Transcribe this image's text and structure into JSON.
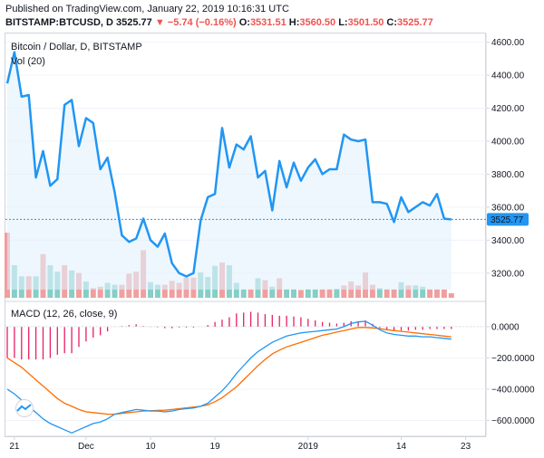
{
  "header": {
    "published": "Published on TradingView.com, January 22, 2019 10:16:31 UTC",
    "symbol": "BITSTAMP:BTCUSD, D",
    "last": "3525.77",
    "change": "▼ −5.74 (−0.16%)",
    "o_label": "O:",
    "o_val": "3531.51",
    "h_label": "H:",
    "h_val": "3560.50",
    "l_label": "L:",
    "l_val": "3501.50",
    "c_label": "C:",
    "c_val": "3525.77"
  },
  "price_pane": {
    "title": "Bitcoin / Dollar, D, BITSTAMP",
    "vol_label": "Vol (20)",
    "last_price_badge": "3525.77"
  },
  "macd_pane": {
    "title": "MACD (12, 26, close, 9)"
  },
  "colors": {
    "price_line": "#2196f3",
    "price_fill": "#e3f2fd",
    "vol_up": "#80cbc4",
    "vol_down": "#ef9a9a",
    "macd_line": "#2196f3",
    "signal_line": "#ff6d00",
    "hist": "#e91e63",
    "badge": "#2196f3",
    "text_down": "#ef5350"
  },
  "chart_data": [
    {
      "type": "line",
      "name": "price",
      "title": "Bitcoin / Dollar, D, BITSTAMP",
      "ylim": [
        3100,
        4620
      ],
      "yticks": [
        3200,
        3400,
        3600,
        3800,
        4000,
        4200,
        4400,
        4600
      ],
      "ytick_labels": [
        "3200.00",
        "3400.00",
        "3600.00",
        "3800.00",
        "4000.00",
        "4200.00",
        "4400.00",
        "4600.00"
      ],
      "x": [
        "2018-11-20",
        "2018-11-21",
        "2018-11-22",
        "2018-11-23",
        "2018-11-24",
        "2018-11-25",
        "2018-11-26",
        "2018-11-27",
        "2018-11-28",
        "2018-11-29",
        "2018-11-30",
        "2018-12-01",
        "2018-12-02",
        "2018-12-03",
        "2018-12-04",
        "2018-12-05",
        "2018-12-06",
        "2018-12-07",
        "2018-12-08",
        "2018-12-09",
        "2018-12-10",
        "2018-12-11",
        "2018-12-12",
        "2018-12-13",
        "2018-12-14",
        "2018-12-15",
        "2018-12-16",
        "2018-12-17",
        "2018-12-18",
        "2018-12-19",
        "2018-12-20",
        "2018-12-21",
        "2018-12-22",
        "2018-12-23",
        "2018-12-24",
        "2018-12-25",
        "2018-12-26",
        "2018-12-27",
        "2018-12-28",
        "2018-12-29",
        "2018-12-30",
        "2018-12-31",
        "2019-01-01",
        "2019-01-02",
        "2019-01-03",
        "2019-01-04",
        "2019-01-05",
        "2019-01-06",
        "2019-01-07",
        "2019-01-08",
        "2019-01-09",
        "2019-01-10",
        "2019-01-11",
        "2019-01-12",
        "2019-01-13",
        "2019-01-14",
        "2019-01-15",
        "2019-01-16",
        "2019-01-17",
        "2019-01-18",
        "2019-01-19",
        "2019-01-20",
        "2019-01-21"
      ],
      "close": [
        4350,
        4540,
        4270,
        4280,
        3780,
        3940,
        3730,
        3770,
        4220,
        4250,
        3970,
        4140,
        4110,
        3830,
        3900,
        3690,
        3430,
        3390,
        3410,
        3530,
        3400,
        3360,
        3440,
        3260,
        3200,
        3180,
        3200,
        3520,
        3660,
        3680,
        4080,
        3840,
        3980,
        3950,
        4030,
        3780,
        3820,
        3580,
        3880,
        3720,
        3870,
        3760,
        3840,
        3890,
        3800,
        3830,
        3830,
        4040,
        4010,
        4000,
        4010,
        3630,
        3630,
        3620,
        3510,
        3660,
        3570,
        3600,
        3630,
        3610,
        3680,
        3530,
        3525.77
      ],
      "volume_ratio": [
        1.0,
        0.5,
        0.33,
        0.33,
        0.33,
        0.67,
        0.5,
        0.4,
        0.5,
        0.42,
        0.38,
        0.25,
        0.15,
        0.17,
        0.23,
        0.2,
        0.2,
        0.37,
        0.4,
        0.73,
        0.24,
        0.2,
        0.2,
        0.26,
        0.23,
        0.31,
        0.31,
        0.39,
        0.32,
        0.49,
        0.54,
        0.5,
        0.23,
        0.13,
        0.13,
        0.3,
        0.27,
        0.17,
        0.3,
        0.13,
        0.13,
        0.12,
        0.13,
        0.13,
        0.13,
        0.13,
        0.14,
        0.19,
        0.25,
        0.19,
        0.39,
        0.2,
        0.15,
        0.13,
        0.13,
        0.24,
        0.19,
        0.19,
        0.17,
        0.13,
        0.13,
        0.13,
        0.07
      ],
      "volume_up": [
        false,
        true,
        true,
        false,
        true,
        false,
        true,
        true,
        false,
        true,
        false,
        true,
        false,
        false,
        true,
        true,
        false,
        false,
        false,
        false,
        true,
        true,
        false,
        false,
        false,
        false,
        false,
        true,
        true,
        true,
        false,
        true,
        true,
        true,
        false,
        true,
        false,
        true,
        false,
        true,
        true,
        false,
        true,
        true,
        false,
        false,
        true,
        false,
        false,
        false,
        false,
        false,
        true,
        false,
        false,
        true,
        false,
        true,
        true,
        false,
        false,
        false,
        false
      ]
    },
    {
      "type": "line",
      "name": "macd",
      "title": "MACD (12, 26, close, 9)",
      "ylim": [
        -690,
        150
      ],
      "yticks": [
        0,
        -200,
        -400,
        -600
      ],
      "ytick_labels": [
        "0.0000",
        "−200.0000",
        "−400.0000",
        "−600.0000"
      ],
      "series": [
        {
          "name": "MACD",
          "values": [
            -400,
            -430,
            -470,
            -510,
            -550,
            -590,
            -620,
            -640,
            -660,
            -680,
            -660,
            -640,
            -620,
            -610,
            -590,
            -560,
            -550,
            -540,
            -530,
            -535,
            -540,
            -540,
            -545,
            -540,
            -530,
            -525,
            -520,
            -510,
            -490,
            -450,
            -410,
            -360,
            -300,
            -250,
            -200,
            -160,
            -130,
            -100,
            -80,
            -60,
            -50,
            -40,
            -35,
            -30,
            -25,
            -20,
            -15,
            0,
            20,
            30,
            35,
            10,
            -20,
            -40,
            -50,
            -55,
            -60,
            -60,
            -65,
            -65,
            -70,
            -75,
            -80
          ]
        },
        {
          "name": "Signal",
          "values": [
            -200,
            -230,
            -260,
            -300,
            -340,
            -380,
            -420,
            -460,
            -490,
            -510,
            -530,
            -545,
            -550,
            -555,
            -560,
            -560,
            -555,
            -550,
            -545,
            -540,
            -538,
            -536,
            -535,
            -530,
            -525,
            -520,
            -515,
            -510,
            -500,
            -480,
            -455,
            -420,
            -385,
            -340,
            -295,
            -250,
            -210,
            -175,
            -150,
            -130,
            -115,
            -100,
            -85,
            -70,
            -55,
            -45,
            -35,
            -25,
            -15,
            -5,
            -5,
            -8,
            -12,
            -20,
            -25,
            -30,
            -35,
            -40,
            -45,
            -50,
            -55,
            -60,
            -65
          ]
        }
      ]
    }
  ],
  "x_axis": {
    "ticks": [
      {
        "label": "21",
        "index": 1
      },
      {
        "label": "Dec",
        "index": 11
      },
      {
        "label": "10",
        "index": 20
      },
      {
        "label": "19",
        "index": 29
      },
      {
        "label": "2019",
        "index": 42
      },
      {
        "label": "14",
        "index": 55
      },
      {
        "label": "23",
        "index": 64
      }
    ]
  }
}
